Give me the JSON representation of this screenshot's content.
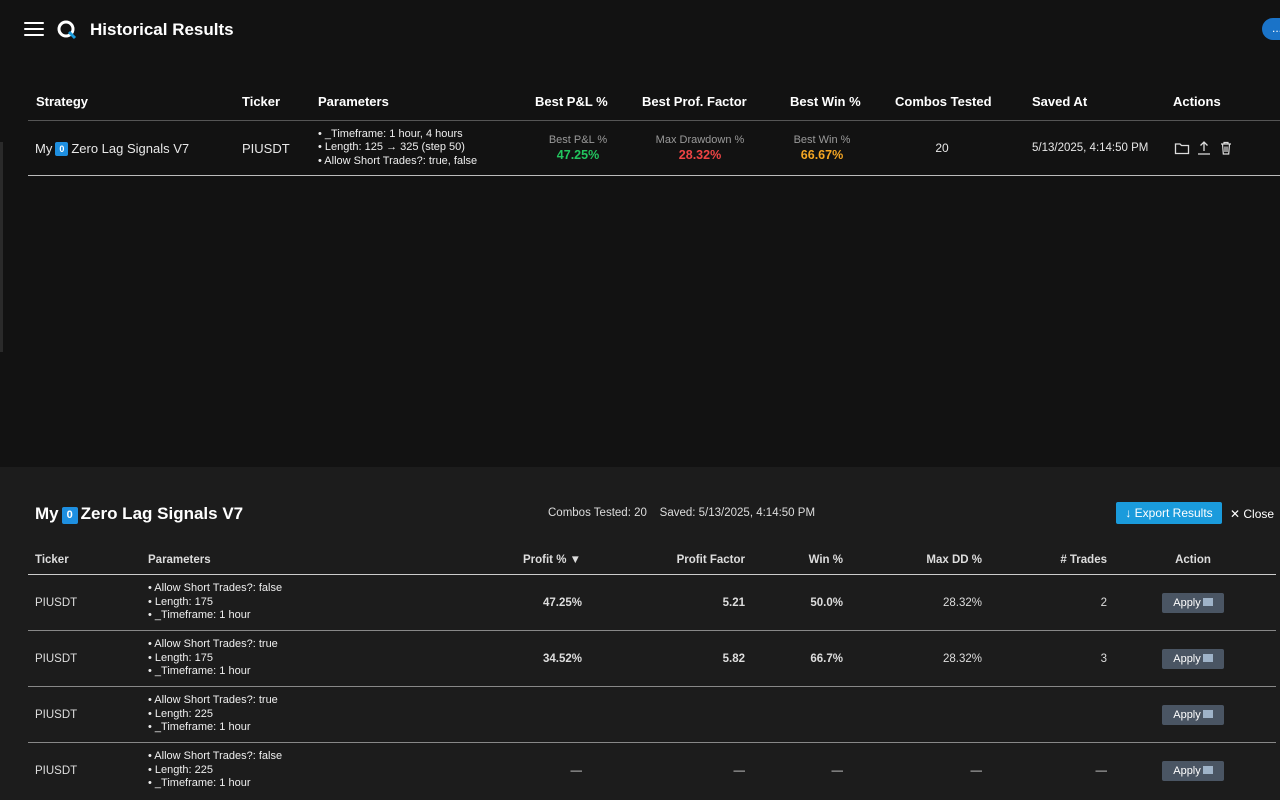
{
  "header": {
    "title": "Historical Results",
    "avatar_text": "..."
  },
  "history_table": {
    "columns": [
      "Strategy",
      "Ticker",
      "Parameters",
      "Best P&L %",
      "Best Prof. Factor",
      "Best Win %",
      "Combos Tested",
      "Saved At",
      "Actions"
    ],
    "row": {
      "strategy_prefix": "My",
      "strategy_badge": "0",
      "strategy_suffix": "Zero Lag Signals V7",
      "ticker": "PIUSDT",
      "params": [
        "• _Timeframe: 1 hour, 4 hours",
        "• Length: 125 → 325 (step 50)",
        "• Allow Short Trades?: true, false"
      ],
      "pnl_label": "Best P&L %",
      "pnl_value": "47.25%",
      "dd_label": "Max Drawdown %",
      "dd_value": "28.32%",
      "win_label": "Best Win %",
      "win_value": "66.67%",
      "combos": "20",
      "saved_at": "5/13/2025, 4:14:50 PM",
      "actions": [
        "folder-icon",
        "upload-icon",
        "trash-icon"
      ]
    }
  },
  "detail": {
    "title_prefix": "My",
    "title_badge": "0",
    "title_suffix": "Zero Lag Signals V7",
    "combos_text": "Combos Tested: 20",
    "saved_text": "Saved: 5/13/2025, 4:14:50 PM",
    "export_label": "↓ Export Results",
    "close_label": "✕ Close",
    "columns": [
      "Ticker",
      "Parameters",
      "Profit % ▼",
      "Profit Factor",
      "Win %",
      "Max DD %",
      "# Trades",
      "Action"
    ],
    "apply_label": "Apply",
    "rows": [
      {
        "ticker": "PIUSDT",
        "params": [
          "• Allow Short Trades?: false",
          "• Length: 175",
          "• _Timeframe: 1 hour"
        ],
        "profit": "47.25%",
        "pf": "5.21",
        "win": "50.0%",
        "dd": "28.32%",
        "trades": "2"
      },
      {
        "ticker": "PIUSDT",
        "params": [
          "• Allow Short Trades?: true",
          "• Length: 175",
          "• _Timeframe: 1 hour"
        ],
        "profit": "34.52%",
        "pf": "5.82",
        "win": "66.7%",
        "dd": "28.32%",
        "trades": "3"
      },
      {
        "ticker": "PIUSDT",
        "params": [
          "• Allow Short Trades?: true",
          "• Length: 225",
          "• _Timeframe: 1 hour"
        ],
        "profit": "",
        "pf": "",
        "win": "",
        "dd": "",
        "trades": ""
      },
      {
        "ticker": "PIUSDT",
        "params": [
          "• Allow Short Trades?: false",
          "• Length: 225",
          "• _Timeframe: 1 hour"
        ],
        "profit": "—",
        "pf": "—",
        "win": "—",
        "dd": "—",
        "trades": "—"
      }
    ]
  },
  "colors": {
    "green": "#22c55e",
    "red": "#ef4444",
    "orange": "#f5a623",
    "blue": "#4f8ff7",
    "accent": "#1a9bdc"
  }
}
